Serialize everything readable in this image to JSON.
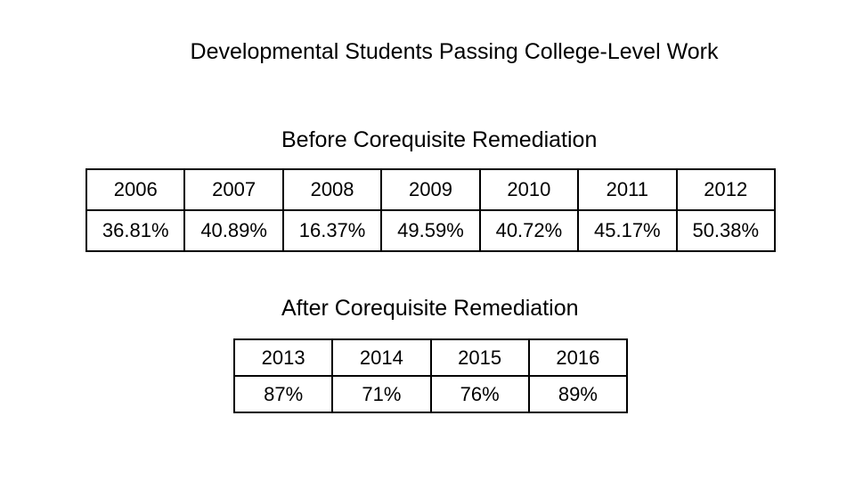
{
  "title": "Developmental Students Passing College-Level Work",
  "before": {
    "title": "Before Corequisite Remediation",
    "years": [
      "2006",
      "2007",
      "2008",
      "2009",
      "2010",
      "2011",
      "2012"
    ],
    "values": [
      "36.81%",
      "40.89%",
      "16.37%",
      "49.59%",
      "40.72%",
      "45.17%",
      "50.38%"
    ]
  },
  "after": {
    "title": "After Corequisite Remediation",
    "years": [
      "2013",
      "2014",
      "2015",
      "2016"
    ],
    "values": [
      "87%",
      "71%",
      "76%",
      "89%"
    ]
  }
}
